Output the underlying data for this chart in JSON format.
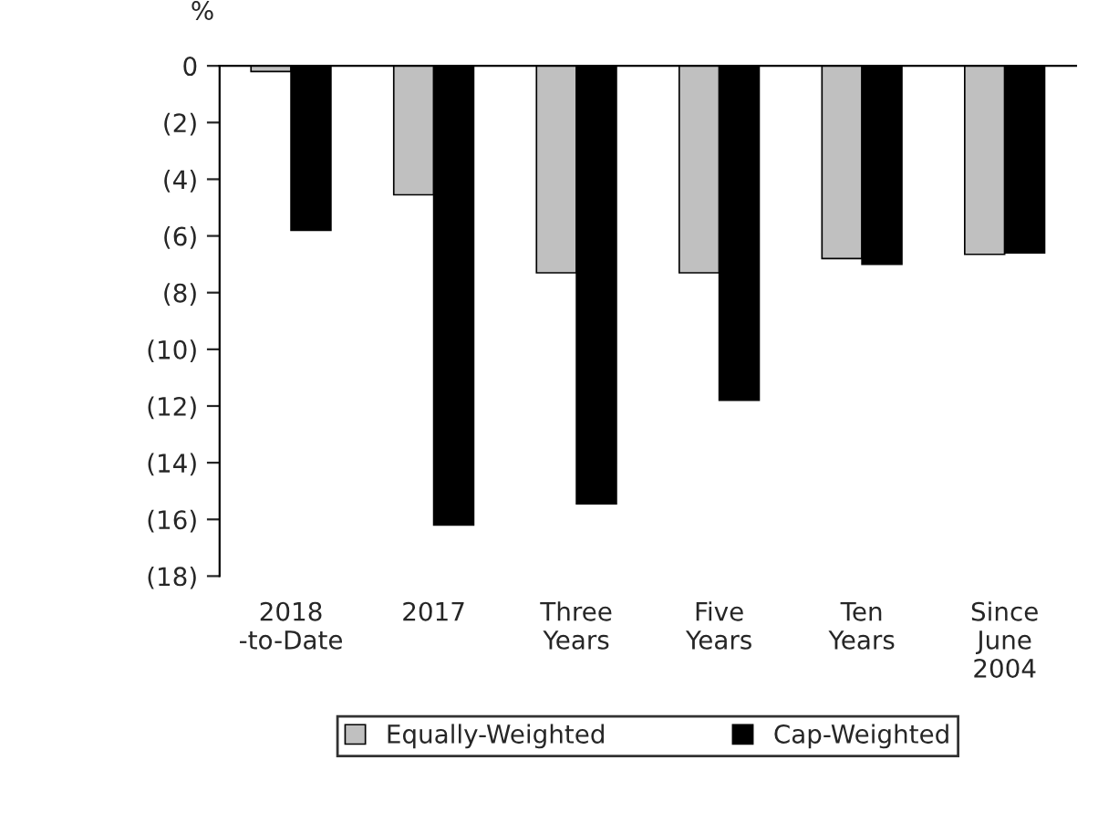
{
  "chart_data": {
    "type": "bar",
    "ylabel": "%",
    "categories": [
      "2018\n-to-Date",
      "2017",
      "Three\nYears",
      "Five\nYears",
      "Ten\nYears",
      "Since\nJune\n2004"
    ],
    "series": [
      {
        "name": "Equally-Weighted",
        "color": "#c0c0c0",
        "values": [
          -0.2,
          -4.55,
          -7.3,
          -7.3,
          -6.8,
          -6.65
        ]
      },
      {
        "name": "Cap-Weighted",
        "color": "#000000",
        "values": [
          -5.8,
          -16.2,
          -15.45,
          -11.8,
          -7.0,
          -6.6
        ]
      }
    ],
    "ylim": [
      -18,
      0
    ],
    "yticks": [
      {
        "value": -18,
        "label": "(18)"
      },
      {
        "value": -16,
        "label": "(16)"
      },
      {
        "value": -14,
        "label": "(14)"
      },
      {
        "value": -12,
        "label": "(12)"
      },
      {
        "value": -10,
        "label": "(10)"
      },
      {
        "value": -8,
        "label": "(8)"
      },
      {
        "value": -6,
        "label": "(6)"
      },
      {
        "value": -4,
        "label": "(4)"
      },
      {
        "value": -2,
        "label": "(2)"
      },
      0
    ],
    "grid": false,
    "legend": "bottom"
  }
}
